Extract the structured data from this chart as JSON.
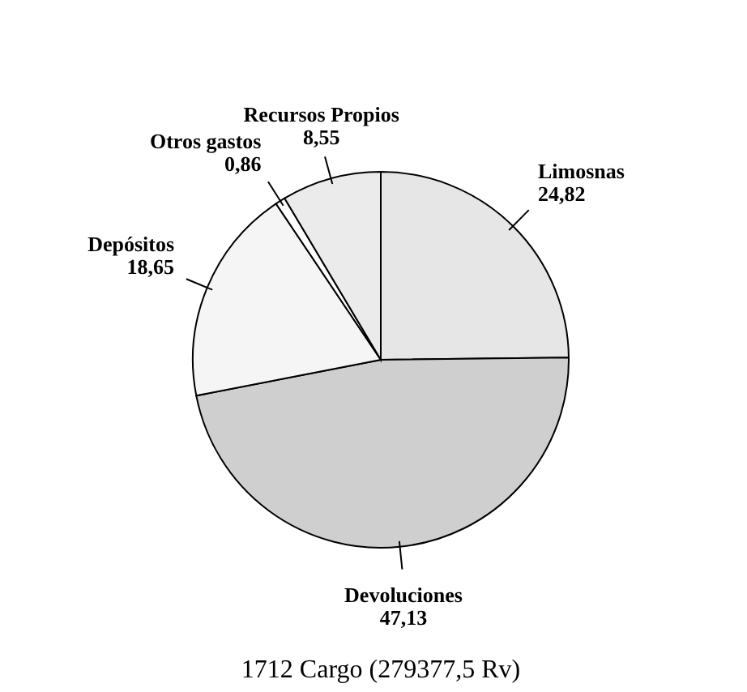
{
  "chart_data": {
    "type": "pie",
    "title": "1712 Cargo (279377,5 Rv)",
    "categories": [
      "Limosnas",
      "Devoluciones",
      "Depósitos",
      "Otros gastos",
      "Recursos Propios"
    ],
    "values": [
      24.82,
      47.13,
      18.65,
      0.86,
      8.55
    ],
    "value_labels": [
      "24,82",
      "47,13",
      "18,65",
      "0,86",
      "8,55"
    ],
    "colors": [
      "#e6e6e6",
      "#cfcfcf",
      "#f5f5f5",
      "#ffffff",
      "#ebebeb"
    ]
  }
}
